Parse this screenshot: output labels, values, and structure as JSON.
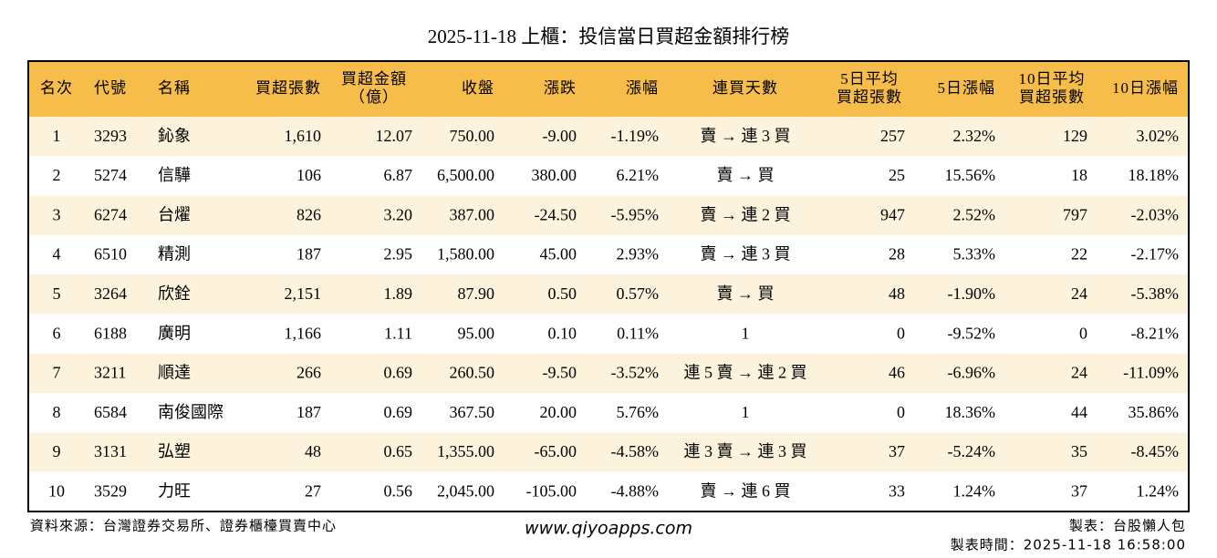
{
  "title": "2025-11-18 上櫃：投信當日買超金額排行榜",
  "header": [
    [
      "名次"
    ],
    [
      "代號"
    ],
    [
      "名稱"
    ],
    [
      "買超張數"
    ],
    [
      "買超金額",
      "（億）"
    ],
    [
      "收盤"
    ],
    [
      "漲跌"
    ],
    [
      "漲幅"
    ],
    [
      "連買天數"
    ],
    [
      "5日平均",
      "買超張數"
    ],
    [
      "5日漲幅"
    ],
    [
      "10日平均",
      "買超張數"
    ],
    [
      "10日漲幅"
    ]
  ],
  "rows": [
    [
      "1",
      "3293",
      "鈊象",
      "1,610",
      "12.07",
      "750.00",
      "-9.00",
      "-1.19%",
      "賣 → 連 3 買",
      "257",
      "2.32%",
      "129",
      "3.02%"
    ],
    [
      "2",
      "5274",
      "信驊",
      "106",
      "6.87",
      "6,500.00",
      "380.00",
      "6.21%",
      "賣 → 買",
      "25",
      "15.56%",
      "18",
      "18.18%"
    ],
    [
      "3",
      "6274",
      "台燿",
      "826",
      "3.20",
      "387.00",
      "-24.50",
      "-5.95%",
      "賣 → 連 2 買",
      "947",
      "2.52%",
      "797",
      "-2.03%"
    ],
    [
      "4",
      "6510",
      "精測",
      "187",
      "2.95",
      "1,580.00",
      "45.00",
      "2.93%",
      "賣 → 連 3 買",
      "28",
      "5.33%",
      "22",
      "-2.17%"
    ],
    [
      "5",
      "3264",
      "欣銓",
      "2,151",
      "1.89",
      "87.90",
      "0.50",
      "0.57%",
      "賣 → 買",
      "48",
      "-1.90%",
      "24",
      "-5.38%"
    ],
    [
      "6",
      "6188",
      "廣明",
      "1,166",
      "1.11",
      "95.00",
      "0.10",
      "0.11%",
      "1",
      "0",
      "-9.52%",
      "0",
      "-8.21%"
    ],
    [
      "7",
      "3211",
      "順達",
      "266",
      "0.69",
      "260.50",
      "-9.50",
      "-3.52%",
      "連 5 賣 → 連 2 買",
      "46",
      "-6.96%",
      "24",
      "-11.09%"
    ],
    [
      "8",
      "6584",
      "南俊國際",
      "187",
      "0.69",
      "367.50",
      "20.00",
      "5.76%",
      "1",
      "0",
      "18.36%",
      "44",
      "35.86%"
    ],
    [
      "9",
      "3131",
      "弘塑",
      "48",
      "0.65",
      "1,355.00",
      "-65.00",
      "-4.58%",
      "連 3 賣 → 連 3 買",
      "37",
      "-5.24%",
      "35",
      "-8.45%"
    ],
    [
      "10",
      "3529",
      "力旺",
      "27",
      "0.56",
      "2,045.00",
      "-105.00",
      "-4.88%",
      "賣 → 連 6 買",
      "33",
      "1.24%",
      "37",
      "1.24%"
    ]
  ],
  "footer": {
    "source": "資料來源：台灣證券交易所、證券櫃檯買賣中心",
    "website": "www.qiyoapps.com",
    "author": "製表：台股懶人包",
    "time": "製表時間：2025-11-18 16:58:00"
  }
}
